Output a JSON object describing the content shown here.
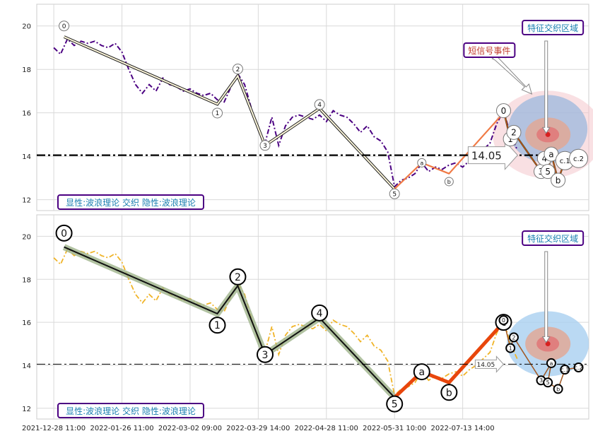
{
  "chart_data": [
    {
      "type": "line",
      "panel": "top",
      "ylim": [
        11.5,
        21
      ],
      "yticks": [
        12,
        14,
        16,
        18,
        20
      ],
      "grid": true,
      "colors": {
        "price": "#4b0082",
        "wave": "#1f1f1f",
        "wave_fill": "#fff8dc",
        "abc": "#f07a45",
        "ref_line": "#000000"
      },
      "price": [
        [
          0,
          19.0
        ],
        [
          2,
          18.7
        ],
        [
          4,
          19.4
        ],
        [
          6,
          19.1
        ],
        [
          8,
          19.3
        ],
        [
          10,
          19.2
        ],
        [
          12,
          19.3
        ],
        [
          14,
          19.1
        ],
        [
          16,
          19.0
        ],
        [
          18,
          19.2
        ],
        [
          20,
          18.8
        ],
        [
          22,
          18.0
        ],
        [
          24,
          17.3
        ],
        [
          26,
          16.9
        ],
        [
          28,
          17.3
        ],
        [
          30,
          17.0
        ],
        [
          32,
          17.6
        ],
        [
          34,
          17.3
        ],
        [
          36,
          17.2
        ],
        [
          38,
          17.0
        ],
        [
          40,
          17.1
        ],
        [
          42,
          16.9
        ],
        [
          44,
          16.8
        ],
        [
          46,
          16.9
        ],
        [
          48,
          16.6
        ],
        [
          50,
          16.5
        ],
        [
          52,
          17.2
        ],
        [
          54,
          17.8
        ],
        [
          56,
          17.3
        ],
        [
          58,
          16.2
        ],
        [
          60,
          15.2
        ],
        [
          62,
          14.6
        ],
        [
          64,
          15.8
        ],
        [
          66,
          14.5
        ],
        [
          68,
          15.4
        ],
        [
          70,
          15.8
        ],
        [
          72,
          15.9
        ],
        [
          74,
          15.8
        ],
        [
          76,
          15.7
        ],
        [
          78,
          15.9
        ],
        [
          80,
          15.6
        ],
        [
          82,
          16.1
        ],
        [
          84,
          15.9
        ],
        [
          86,
          15.8
        ],
        [
          88,
          15.5
        ],
        [
          90,
          15.1
        ],
        [
          92,
          15.4
        ],
        [
          94,
          14.9
        ],
        [
          96,
          14.7
        ],
        [
          98,
          14.2
        ],
        [
          100,
          12.6
        ],
        [
          102,
          12.9
        ],
        [
          104,
          13.0
        ],
        [
          106,
          13.2
        ],
        [
          108,
          13.7
        ],
        [
          110,
          13.3
        ],
        [
          112,
          13.5
        ],
        [
          114,
          13.4
        ],
        [
          116,
          13.6
        ],
        [
          118,
          13.7
        ],
        [
          120,
          13.5
        ],
        [
          122,
          13.8
        ],
        [
          124,
          14.0
        ],
        [
          126,
          14.3
        ],
        [
          128,
          14.6
        ],
        [
          130,
          15.5
        ],
        [
          132,
          16.1
        ],
        [
          134,
          15.0
        ],
        [
          136,
          14.3
        ]
      ],
      "wave_points": [
        {
          "label": "0",
          "x": 3,
          "y": 19.5
        },
        {
          "label": "1",
          "x": 48,
          "y": 16.4
        },
        {
          "label": "2",
          "x": 54,
          "y": 17.7
        },
        {
          "label": "3",
          "x": 62,
          "y": 14.5
        },
        {
          "label": "4",
          "x": 78,
          "y": 16.2
        },
        {
          "label": "5",
          "x": 100,
          "y": 12.5
        }
      ],
      "abc_points": [
        {
          "label": "a",
          "x": 108,
          "y": 13.7
        },
        {
          "label": "b",
          "x": 116,
          "y": 13.2
        },
        {
          "label": "c",
          "x": 132,
          "y": 16.0
        }
      ],
      "mini_waves": [
        {
          "label": "0",
          "x": 132,
          "y": 16.1
        },
        {
          "label": "1",
          "x": 134,
          "y": 14.8
        },
        {
          "label": "2",
          "x": 135,
          "y": 15.1
        },
        {
          "label": "3",
          "x": 143,
          "y": 13.3
        },
        {
          "label": "4",
          "x": 144,
          "y": 13.9
        },
        {
          "label": "5",
          "x": 145,
          "y": 13.3
        },
        {
          "label": "a",
          "x": 146,
          "y": 14.1
        },
        {
          "label": "b",
          "x": 148,
          "y": 12.9
        },
        {
          "label": "c.1",
          "x": 150,
          "y": 13.8
        },
        {
          "label": "c.2",
          "x": 154,
          "y": 13.9
        }
      ],
      "ref_line_value": 14.05,
      "ref_label": "14.05",
      "short_signal_label": "短信号事件",
      "feature_zone_label": "特征交织区域",
      "caption": "显性:波浪理论 交织 隐性:波浪理论"
    },
    {
      "type": "line",
      "panel": "bottom",
      "ylim": [
        11.5,
        21
      ],
      "yticks": [
        12,
        14,
        16,
        18,
        20
      ],
      "grid": true,
      "colors": {
        "price": "#f0b428",
        "wave": "#101010",
        "wave_glow": "#9db38a",
        "abc": "#e8460c",
        "ref_line": "#000000"
      },
      "wave_points": [
        {
          "label": "0",
          "x": 3,
          "y": 19.5
        },
        {
          "label": "1",
          "x": 48,
          "y": 16.4
        },
        {
          "label": "2",
          "x": 54,
          "y": 17.7
        },
        {
          "label": "3",
          "x": 62,
          "y": 14.5
        },
        {
          "label": "4",
          "x": 78,
          "y": 16.2
        },
        {
          "label": "5",
          "x": 100,
          "y": 12.5
        }
      ],
      "abc_points": [
        {
          "label": "a",
          "x": 108,
          "y": 13.7
        },
        {
          "label": "b",
          "x": 116,
          "y": 13.2
        },
        {
          "label": "c",
          "x": 132,
          "y": 16.0
        }
      ],
      "mini_waves": [
        {
          "label": "0",
          "x": 132,
          "y": 16.1
        },
        {
          "label": "1",
          "x": 134,
          "y": 14.8
        },
        {
          "label": "2",
          "x": 135,
          "y": 15.3
        },
        {
          "label": "3",
          "x": 143,
          "y": 13.3
        },
        {
          "label": "a",
          "x": 146,
          "y": 14.1
        },
        {
          "label": "5",
          "x": 145,
          "y": 13.2
        },
        {
          "label": "b",
          "x": 148,
          "y": 12.9
        },
        {
          "label": "c.1",
          "x": 150,
          "y": 13.8
        },
        {
          "label": "c.2",
          "x": 154,
          "y": 13.9
        }
      ],
      "ref_line_value": 14.05,
      "ref_label": "14.05",
      "feature_zone_label": "特征交织区域",
      "caption": "显性:波浪理论 交织 隐性:波浪理论"
    }
  ],
  "x_axis": {
    "ticks": [
      {
        "x": 0,
        "label": "2021-12-28 11:00"
      },
      {
        "x": 20,
        "label": "2022-01-26 11:00"
      },
      {
        "x": 40,
        "label": "2022-03-02 09:00"
      },
      {
        "x": 60,
        "label": "2022-03-29 14:00"
      },
      {
        "x": 80,
        "label": "2022-04-28 11:00"
      },
      {
        "x": 100,
        "label": "2022-05-31 10:00"
      },
      {
        "x": 120,
        "label": "2022-07-13 14:00"
      }
    ],
    "xlim": [
      -5,
      157
    ]
  }
}
